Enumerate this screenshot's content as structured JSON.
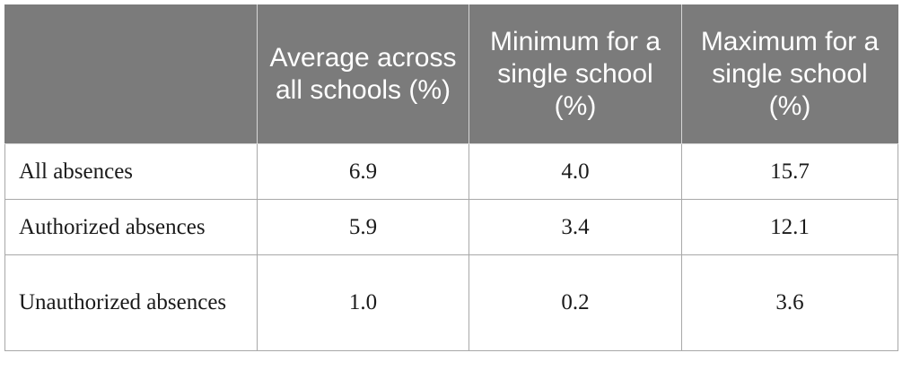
{
  "table": {
    "headers": [
      "",
      "Average across all schools (%)",
      "Minimum for a single school (%)",
      "Maximum for a single school (%)"
    ],
    "rows": [
      {
        "label": "All absences",
        "average": "6.9",
        "minimum": "4.0",
        "maximum": "15.7"
      },
      {
        "label": "Authorized absences",
        "average": "5.9",
        "minimum": "3.4",
        "maximum": "12.1"
      },
      {
        "label": "Unauthorized absences",
        "average": "1.0",
        "minimum": "0.2",
        "maximum": "3.6"
      }
    ]
  },
  "colors": {
    "header_background": "#7b7b7b",
    "header_text": "#ffffff",
    "body_text": "#1a1a1a",
    "grid_lines": "#a8a8a8"
  }
}
